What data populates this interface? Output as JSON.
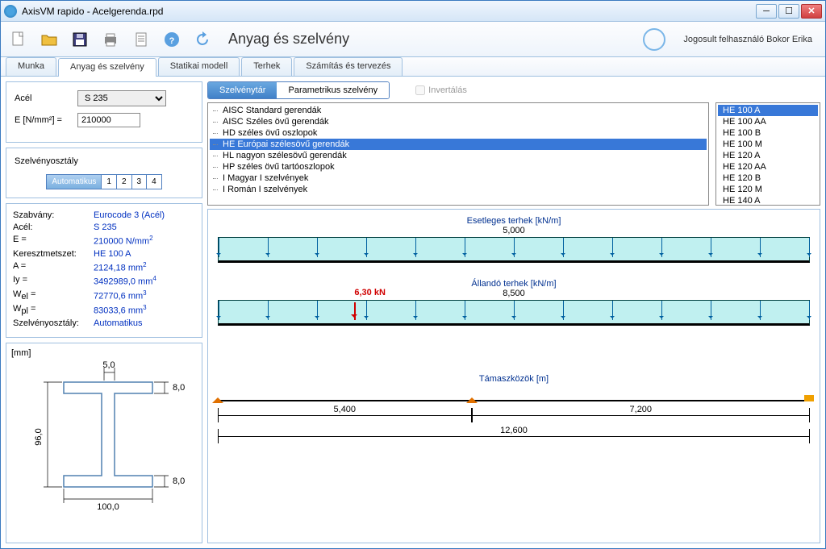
{
  "window": {
    "title": "AxisVM rapido - Acelgerenda.rpd"
  },
  "toolbar": {
    "page_title": "Anyag és szelvény",
    "user_text": "Jogosult felhasználó  Bokor Erika"
  },
  "tabs": [
    "Munka",
    "Anyag és szelvény",
    "Statikai modell",
    "Terhek",
    "Számítás és tervezés"
  ],
  "active_tab": 1,
  "material": {
    "label": "Acél",
    "value": "S 235",
    "e_label": "E [N/mm²] =",
    "e_value": "210000"
  },
  "szelv_class": {
    "label": "Szelvényosztály",
    "options": [
      "Automatikus",
      "1",
      "2",
      "3",
      "4"
    ],
    "active": 0
  },
  "info": [
    {
      "k": "Szabvány:",
      "v": "Eurocode 3 (Acél)"
    },
    {
      "k": "Acél:",
      "v": "S 235"
    },
    {
      "k": "E =",
      "v": "210000 N/mm²",
      "sup": "2",
      "base": "210000 N/mm"
    },
    {
      "k": "Keresztmetszet:",
      "v": "HE 100 A"
    },
    {
      "k": "A =",
      "v": "2124,18 mm²",
      "sup": "2",
      "base": "2124,18 mm"
    },
    {
      "k": "Iy =",
      "v": "3492989,0 mm⁴",
      "sup": "4",
      "base": "3492989,0 mm"
    },
    {
      "k": "Wel =",
      "v": "72770,6 mm³",
      "sup": "3",
      "base": "72770,6 mm",
      "sub": "el"
    },
    {
      "k": "Wpl =",
      "v": "83033,6 mm³",
      "sup": "3",
      "base": "83033,6 mm",
      "sub": "pl"
    },
    {
      "k": "Szelvényosztály:",
      "v": "Automatikus"
    }
  ],
  "profile": {
    "unit": "[mm]",
    "h": "96,0",
    "b": "100,0",
    "tf": "8,0",
    "tw": "5,0"
  },
  "sel_tabs": {
    "a": "Szelvénytár",
    "b": "Parametrikus szelvény",
    "active": 0,
    "invert": "Invertálás"
  },
  "tree": [
    "AISC Standard gerendák",
    "AISC Széles övű gerendák",
    "HD  széles övű oszlopok",
    "HE  Európai szélesövű gerendák",
    "HL  nagyon szélesövű gerendák",
    "HP  széles övű tartóoszlopok",
    "I  Magyar I szelvények",
    "I  Román I szelvények"
  ],
  "tree_sel": 3,
  "sizes": [
    "HE 100 A",
    "HE 100 AA",
    "HE 100 B",
    "HE 100 M",
    "HE 120 A",
    "HE 120 AA",
    "HE 120 B",
    "HE 120 M",
    "HE 140 A"
  ],
  "size_sel": 0,
  "loads": {
    "var": {
      "title": "Esetleges terhek [kN/m]",
      "value": "5,000"
    },
    "perm": {
      "title": "Állandó terhek [kN/m]",
      "value": "8,500",
      "point_label": "6,30 kN",
      "point_pos_pct": 23
    }
  },
  "spans": {
    "title": "Támaszközök [m]",
    "segs": [
      {
        "label": "5,400",
        "from": 0,
        "to": 42.86
      },
      {
        "label": "7,200",
        "from": 42.86,
        "to": 100
      }
    ],
    "total": {
      "label": "12,600",
      "from": 0,
      "to": 100
    },
    "supports": [
      0,
      42.86,
      100
    ]
  },
  "colors": {
    "accent": "#3878d8",
    "load_fill": "#c0f0f0",
    "info_value": "#0030c0",
    "point_load": "#d00000",
    "support": "#e07000"
  }
}
